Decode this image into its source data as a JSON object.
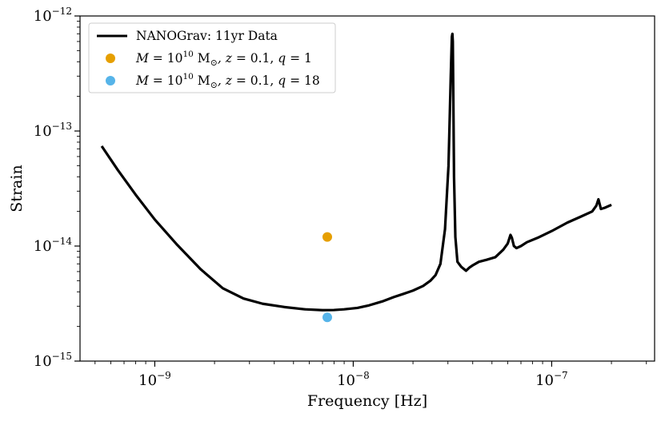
{
  "chart_data": {
    "type": "line",
    "xscale": "log",
    "yscale": "log",
    "xlabel": "Frequency [Hz]",
    "ylabel": "Strain",
    "xlim": [
      4.2e-10,
      3.3e-07
    ],
    "ylim": [
      1e-15,
      1e-12
    ],
    "grid": false,
    "legend_position": "top-left",
    "x_ticks": [
      {
        "value": 1e-09,
        "base": "10",
        "exp": "−9"
      },
      {
        "value": 1e-08,
        "base": "10",
        "exp": "−8"
      },
      {
        "value": 1e-07,
        "base": "10",
        "exp": "−7"
      }
    ],
    "y_ticks": [
      {
        "value": 1e-15,
        "base": "10",
        "exp": "−15"
      },
      {
        "value": 1e-14,
        "base": "10",
        "exp": "−14"
      },
      {
        "value": 1e-13,
        "base": "10",
        "exp": "−13"
      },
      {
        "value": 1e-12,
        "base": "10",
        "exp": "−12"
      }
    ],
    "series": [
      {
        "name": "NANOGrav: 11yr Data",
        "kind": "line",
        "color": "#000000",
        "x": [
          5.4e-10,
          6.5e-10,
          8e-10,
          1e-09,
          1.3e-09,
          1.7e-09,
          2.2e-09,
          2.8e-09,
          3.5e-09,
          4.5e-09,
          5.7e-09,
          7e-09,
          8e-09,
          9e-09,
          1.05e-08,
          1.2e-08,
          1.4e-08,
          1.6e-08,
          1.8e-08,
          2e-08,
          2.25e-08,
          2.45e-08,
          2.6e-08,
          2.75e-08,
          2.9e-08,
          3.02e-08,
          3.1e-08,
          3.14e-08,
          3.16e-08,
          3.175e-08,
          3.19e-08,
          3.22e-08,
          3.27e-08,
          3.35e-08,
          3.5e-08,
          3.7e-08,
          3.85e-08,
          4e-08,
          4.3e-08,
          4.7e-08,
          5.2e-08,
          5.7e-08,
          6e-08,
          6.2e-08,
          6.3e-08,
          6.45e-08,
          6.65e-08,
          7e-08,
          7.5e-08,
          8.5e-08,
          1e-07,
          1.2e-07,
          1.4e-07,
          1.6e-07,
          1.68e-07,
          1.72e-07,
          1.77e-07,
          1.85e-07,
          2e-07
        ],
        "y": [
          7.4e-14,
          4.6e-14,
          2.8e-14,
          1.7e-14,
          1.02e-14,
          6.3e-15,
          4.3e-15,
          3.5e-15,
          3.15e-15,
          2.95e-15,
          2.82e-15,
          2.77e-15,
          2.78e-15,
          2.82e-15,
          2.9e-15,
          3.05e-15,
          3.3e-15,
          3.6e-15,
          3.85e-15,
          4.1e-15,
          4.5e-15,
          5e-15,
          5.6e-15,
          7e-15,
          1.4e-14,
          5e-14,
          3e-13,
          6.6e-13,
          7e-13,
          6e-13,
          2.5e-13,
          4e-14,
          1.2e-14,
          7.3e-15,
          6.6e-15,
          6.1e-15,
          6.5e-15,
          6.8e-15,
          7.3e-15,
          7.6e-15,
          8e-15,
          9.3e-15,
          1.05e-14,
          1.25e-14,
          1.18e-14,
          1e-14,
          9.6e-15,
          1e-14,
          1.08e-14,
          1.18e-14,
          1.35e-14,
          1.6e-14,
          1.8e-14,
          2e-14,
          2.25e-14,
          2.55e-14,
          2.1e-14,
          2.15e-14,
          2.28e-14
        ]
      },
      {
        "name": "M = 10^10 M⊙, z = 0.1, q = 1",
        "kind": "scatter",
        "color": "#E69F00",
        "x": [
          7.4e-09
        ],
        "y": [
          1.2e-14
        ]
      },
      {
        "name": "M = 10^10 M⊙, z = 0.1, q = 18",
        "kind": "scatter",
        "color": "#56B4E9",
        "x": [
          7.4e-09
        ],
        "y": [
          2.4e-15
        ]
      }
    ],
    "legend": [
      {
        "kind": "line",
        "label": "NANOGrav: 11yr Data",
        "color": "#000000"
      },
      {
        "kind": "point",
        "color": "#E69F00",
        "m": "M",
        "eq1": " = 10",
        "mexp": "10",
        "msun": " M",
        "sun": "⊙",
        "z": ", z",
        "zval": " = 0.1, ",
        "q": "q",
        "qval": " = 1"
      },
      {
        "kind": "point",
        "color": "#56B4E9",
        "m": "M",
        "eq1": " = 10",
        "mexp": "10",
        "msun": " M",
        "sun": "⊙",
        "z": ", z",
        "zval": " = 0.1, ",
        "q": "q",
        "qval": " = 18"
      }
    ]
  }
}
